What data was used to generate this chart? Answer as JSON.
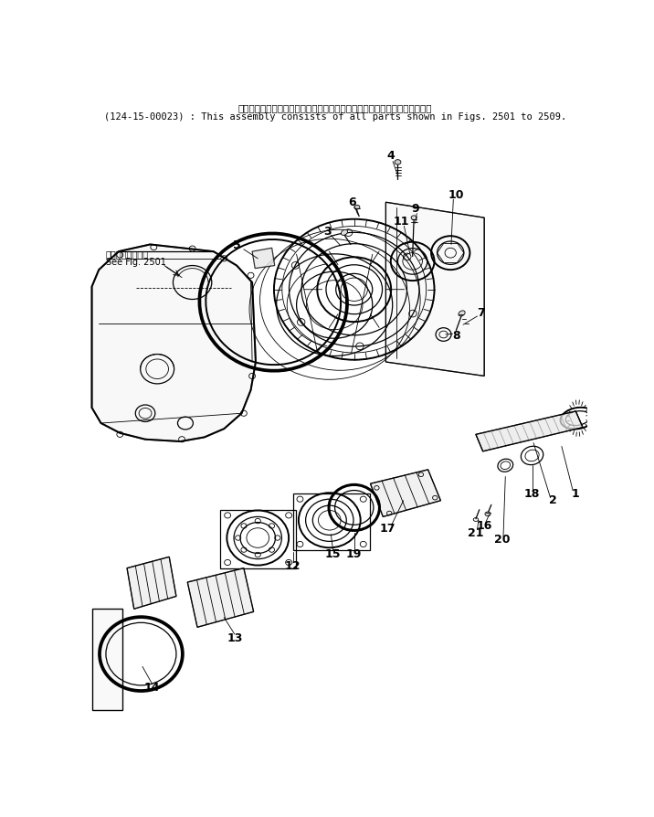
{
  "title_line1": "このアセンブリの構成部品は第２５０１図から第２５０９図までごみます．",
  "title_line2": "(124-15-00023) : This assembly consists of all parts shown in Figs. 2501 to 2509.",
  "see_fig_line1": "第２５０１図参照",
  "see_fig_line2": "See Fig. 2501",
  "bg_color": "#ffffff",
  "line_color": "#000000"
}
